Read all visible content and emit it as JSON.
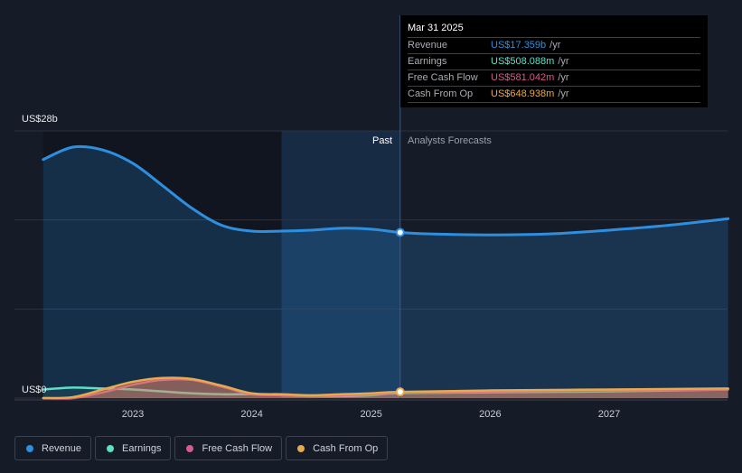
{
  "chart_data": {
    "type": "area",
    "y_axis": {
      "top_label": "US$28b",
      "bottom_label": "US$0",
      "ylim": [
        0,
        28
      ]
    },
    "x_ticks": [
      "2023",
      "2024",
      "2025",
      "2026",
      "2027"
    ],
    "past_label": "Past",
    "forecast_label": "Analysts Forecasts",
    "series": [
      {
        "name": "Revenue",
        "color": "#2e8fe0",
        "unit": "b",
        "x": [
          "2022-04-01",
          "2022-07-01",
          "2022-10-01",
          "2023-01-01",
          "2023-04-01",
          "2023-07-01",
          "2023-10-01",
          "2024-01-01",
          "2024-04-01",
          "2024-07-01",
          "2024-10-01",
          "2025-01-01",
          "2025-03-31",
          "2025-07-01",
          "2026-01-01",
          "2026-07-01",
          "2027-01-01",
          "2027-07-01",
          "2028-01-01"
        ],
        "values": [
          25.0,
          26.3,
          26.0,
          24.6,
          22.3,
          19.9,
          18.1,
          17.5,
          17.5,
          17.6,
          17.8,
          17.7,
          17.36,
          17.2,
          17.1,
          17.2,
          17.6,
          18.1,
          18.8
        ]
      },
      {
        "name": "Earnings",
        "color": "#5ce1c6",
        "unit": "b",
        "x": [
          "2022-04-01",
          "2022-07-01",
          "2022-10-01",
          "2023-01-01",
          "2023-04-01",
          "2023-07-01",
          "2023-10-01",
          "2024-01-01",
          "2024-04-01",
          "2024-07-01",
          "2024-10-01",
          "2025-01-01",
          "2025-03-31",
          "2026-01-01",
          "2027-01-01",
          "2028-01-01"
        ],
        "values": [
          0.9,
          1.1,
          1.0,
          0.9,
          0.7,
          0.5,
          0.4,
          0.4,
          0.3,
          0.2,
          0.2,
          0.3,
          0.51,
          0.6,
          0.7,
          0.9
        ]
      },
      {
        "name": "Free Cash Flow",
        "color": "#d55c8f",
        "unit": "b",
        "x": [
          "2022-04-01",
          "2022-07-01",
          "2022-10-01",
          "2023-01-01",
          "2023-04-01",
          "2023-07-01",
          "2023-10-01",
          "2024-01-01",
          "2024-04-01",
          "2024-07-01",
          "2024-10-01",
          "2025-01-01",
          "2025-03-31",
          "2026-01-01",
          "2027-01-01",
          "2028-01-01"
        ],
        "values": [
          0.0,
          0.0,
          0.6,
          1.4,
          1.9,
          1.9,
          1.2,
          0.4,
          0.3,
          0.2,
          0.3,
          0.4,
          0.58,
          0.7,
          0.8,
          0.9
        ]
      },
      {
        "name": "Cash From Op",
        "color": "#e9a94f",
        "unit": "b",
        "x": [
          "2022-04-01",
          "2022-07-01",
          "2022-10-01",
          "2023-01-01",
          "2023-04-01",
          "2023-07-01",
          "2023-10-01",
          "2024-01-01",
          "2024-04-01",
          "2024-07-01",
          "2024-10-01",
          "2025-01-01",
          "2025-03-31",
          "2026-01-01",
          "2027-01-01",
          "2028-01-01"
        ],
        "values": [
          0.0,
          0.1,
          0.9,
          1.7,
          2.1,
          2.0,
          1.3,
          0.5,
          0.4,
          0.3,
          0.4,
          0.5,
          0.65,
          0.8,
          0.9,
          1.0
        ]
      }
    ]
  },
  "tooltip": {
    "date": "Mar 31 2025",
    "rows": [
      {
        "label": "Revenue",
        "value": "US$17.359b",
        "unit": "/yr",
        "color": "#2e8fe0"
      },
      {
        "label": "Earnings",
        "value": "US$508.088m",
        "unit": "/yr",
        "color": "#5ce1c6"
      },
      {
        "label": "Free Cash Flow",
        "value": "US$581.042m",
        "unit": "/yr",
        "color": "#d55c8f"
      },
      {
        "label": "Cash From Op",
        "value": "US$648.938m",
        "unit": "/yr",
        "color": "#e9a94f"
      }
    ]
  },
  "legend": [
    {
      "label": "Revenue",
      "color": "#2e8fe0"
    },
    {
      "label": "Earnings",
      "color": "#5ce1c6"
    },
    {
      "label": "Free Cash Flow",
      "color": "#d55c8f"
    },
    {
      "label": "Cash From Op",
      "color": "#e9a94f"
    }
  ]
}
